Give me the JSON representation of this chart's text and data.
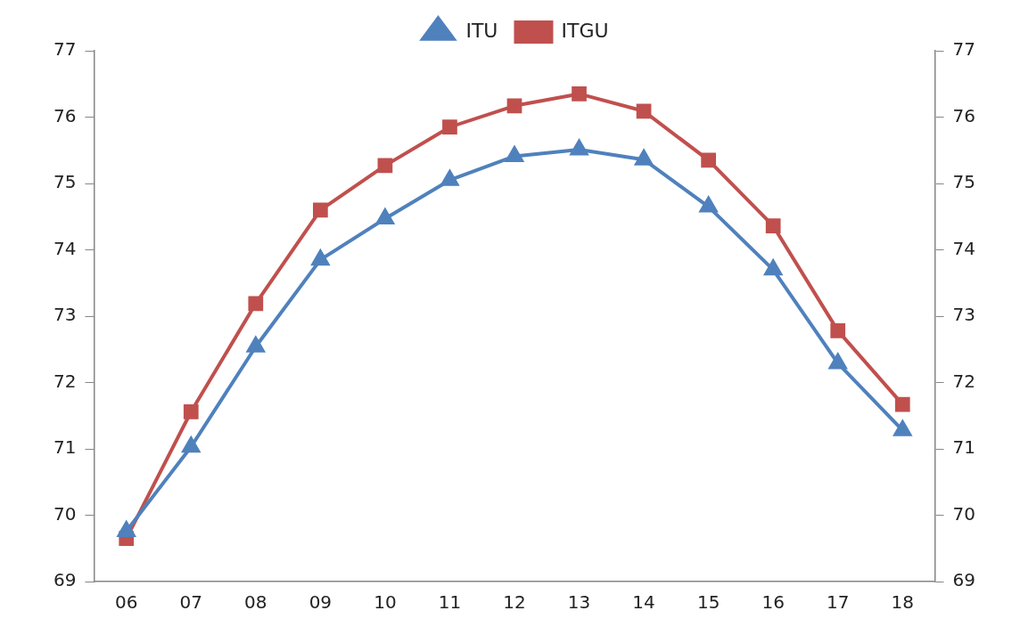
{
  "chart_data": {
    "type": "line",
    "categories": [
      "06",
      "07",
      "08",
      "09",
      "10",
      "11",
      "12",
      "13",
      "14",
      "15",
      "16",
      "17",
      "18"
    ],
    "series": [
      {
        "name": "ITGU",
        "color": "#c0504d",
        "marker": "square",
        "values": [
          69.65,
          71.56,
          73.19,
          74.6,
          75.27,
          75.85,
          76.17,
          76.35,
          76.09,
          75.35,
          74.36,
          72.78,
          71.67
        ]
      },
      {
        "name": "ITU",
        "color": "#4f81bd",
        "marker": "triangle",
        "values": [
          69.76,
          71.03,
          72.54,
          73.85,
          74.47,
          75.05,
          75.41,
          75.51,
          75.36,
          74.65,
          73.7,
          72.29,
          71.28
        ]
      }
    ],
    "ylim": [
      69,
      77
    ],
    "yticks": [
      69,
      70,
      71,
      72,
      73,
      74,
      75,
      76,
      77
    ],
    "y2lim": [
      69,
      77
    ],
    "y2ticks": [
      69,
      70,
      71,
      72,
      73,
      74,
      75,
      76,
      77
    ],
    "grid": false,
    "legend": "top",
    "line_style": "solid"
  }
}
